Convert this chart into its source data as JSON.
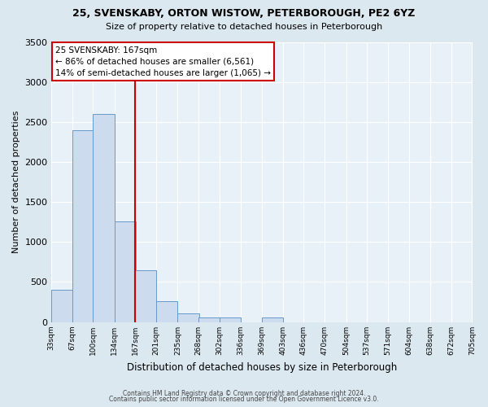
{
  "title1": "25, SVENSKABY, ORTON WISTOW, PETERBOROUGH, PE2 6YZ",
  "title2": "Size of property relative to detached houses in Peterborough",
  "xlabel": "Distribution of detached houses by size in Peterborough",
  "ylabel": "Number of detached properties",
  "bar_color": "#ccdcee",
  "bar_edge_color": "#6699cc",
  "reference_line_x": 167,
  "reference_line_color": "#cc0000",
  "annotation_title": "25 SVENSKABY: 167sqm",
  "annotation_line1": "← 86% of detached houses are smaller (6,561)",
  "annotation_line2": "14% of semi-detached houses are larger (1,065) →",
  "bins": [
    33,
    67,
    100,
    134,
    167,
    201,
    235,
    268,
    302,
    336,
    369,
    403,
    436,
    470,
    504,
    537,
    571,
    604,
    638,
    672,
    705
  ],
  "counts": [
    400,
    2400,
    2600,
    1260,
    650,
    265,
    105,
    60,
    60,
    0,
    55,
    0,
    0,
    0,
    0,
    0,
    0,
    0,
    0,
    0
  ],
  "ylim": [
    0,
    3500
  ],
  "yticks": [
    0,
    500,
    1000,
    1500,
    2000,
    2500,
    3000,
    3500
  ],
  "footer1": "Contains HM Land Registry data © Crown copyright and database right 2024.",
  "footer2": "Contains public sector information licensed under the Open Government Licence v3.0.",
  "fig_bg_color": "#dce8f0",
  "plot_bg_color": "#e8f0f8"
}
